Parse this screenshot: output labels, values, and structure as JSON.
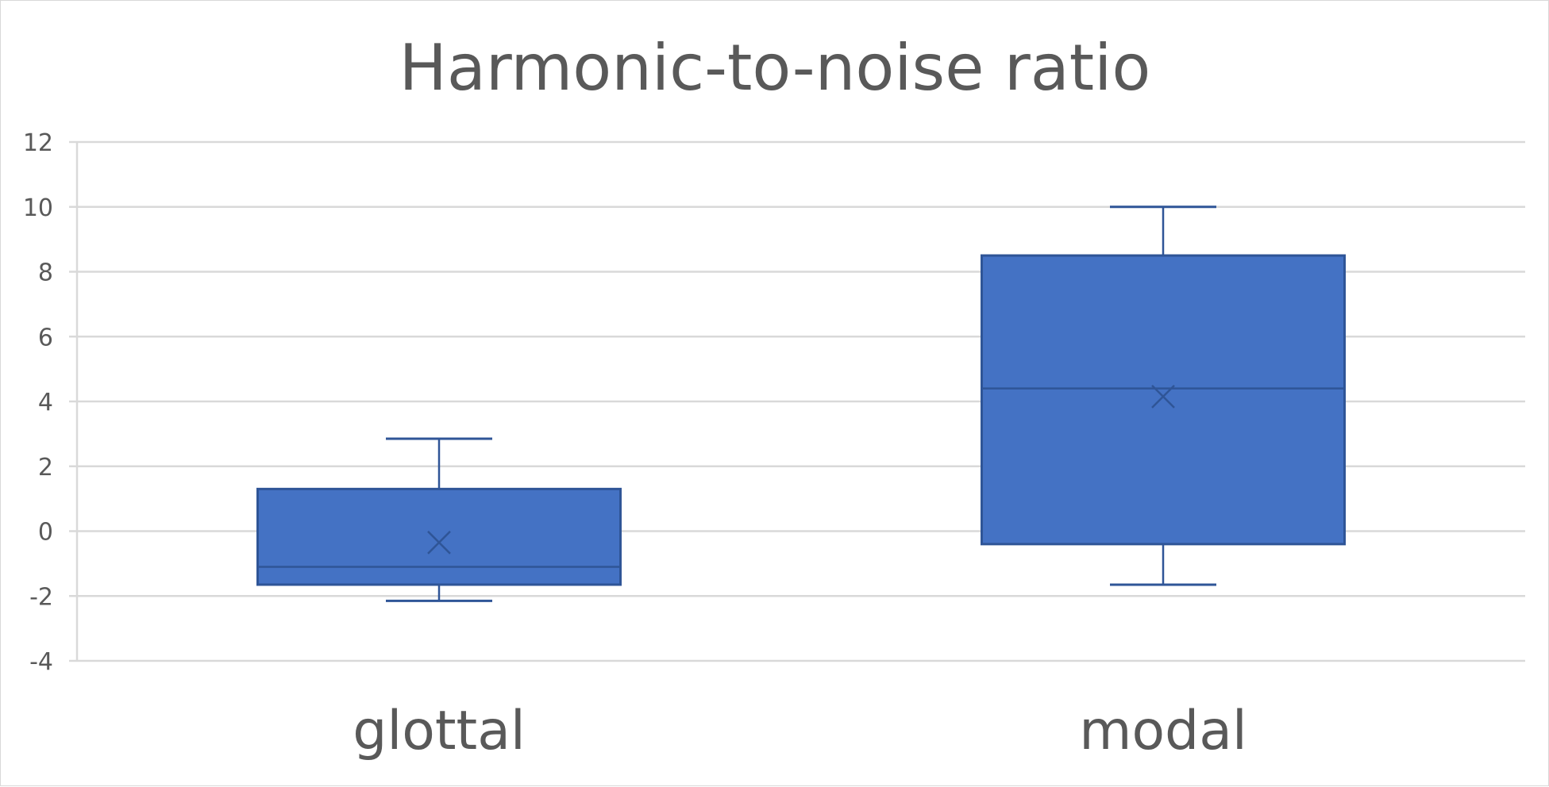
{
  "chart_data": {
    "type": "box",
    "title": "Harmonic-to-noise ratio",
    "xlabel": "",
    "ylabel": "",
    "ylim": [
      -4,
      12
    ],
    "y_ticks": [
      12,
      10,
      8,
      6,
      4,
      2,
      0,
      -2,
      -4
    ],
    "y_tick_labels": [
      "12",
      "10",
      "8",
      "6",
      "4",
      "2",
      "0",
      "-2",
      "-4"
    ],
    "grid": true,
    "legend": "none",
    "categories": [
      "glottal",
      "modal"
    ],
    "boxes": [
      {
        "category": "glottal",
        "whisker_low": -2.15,
        "q1": -1.65,
        "median": -1.1,
        "q3": 1.3,
        "whisker_high": 2.85,
        "mean": -0.35
      },
      {
        "category": "modal",
        "whisker_low": -1.65,
        "q1": -0.4,
        "median": 4.4,
        "q3": 8.5,
        "whisker_high": 10.0,
        "mean": 4.15
      }
    ],
    "colors": {
      "box_fill": "#4472C4",
      "box_stroke": "#2F5597",
      "grid": "#D9D9D9",
      "text": "#595959"
    }
  }
}
